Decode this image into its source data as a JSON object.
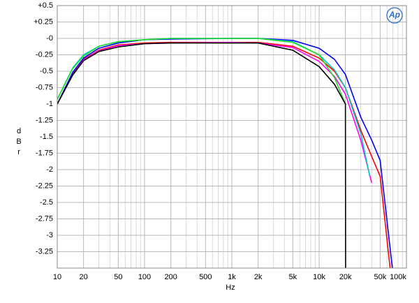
{
  "chart_data": {
    "type": "line",
    "xlabel": "Hz",
    "ylabel": "dBr",
    "logo": "Ap",
    "xscale": "log",
    "grid": true,
    "xlim": [
      10,
      100000
    ],
    "ylim": [
      -3.5,
      0.5
    ],
    "xticks": [
      10,
      20,
      50,
      100,
      200,
      500,
      {
        "value": 1000,
        "label": "1k"
      },
      {
        "value": 2000,
        "label": "2k"
      },
      {
        "value": 5000,
        "label": "5k"
      },
      {
        "value": 10000,
        "label": "10k"
      },
      {
        "value": 20000,
        "label": "20k"
      },
      {
        "value": 50000,
        "label": "50k"
      },
      {
        "value": 100000,
        "label": "100k"
      }
    ],
    "xgrid": [
      30,
      40,
      60,
      70,
      80,
      90,
      300,
      400,
      600,
      700,
      800,
      900,
      3000,
      4000,
      6000,
      7000,
      8000,
      9000,
      30000,
      40000,
      60000,
      70000,
      80000,
      90000
    ],
    "yticks": [
      {
        "value": 0.5,
        "label": "+0.5"
      },
      {
        "value": 0.25,
        "label": "+0.25"
      },
      {
        "value": 0,
        "label": "-0"
      },
      -0.25,
      -0.5,
      -0.75,
      -1,
      -1.25,
      -1.5,
      -1.75,
      -2,
      -2.25,
      -2.5,
      -2.75,
      -3,
      -3.25
    ],
    "series": [
      {
        "color": "#ff0000",
        "x": [
          10,
          15,
          20,
          30,
          50,
          100,
          200,
          1000,
          2000,
          5000,
          10000,
          15000,
          20000,
          30000,
          40000,
          50000,
          65000
        ],
        "values": [
          -1,
          -0.55,
          -0.32,
          -0.18,
          -0.1,
          -0.07,
          -0.06,
          -0.06,
          -0.06,
          -0.12,
          -0.3,
          -0.5,
          -0.75,
          -1.4,
          -1.8,
          -2.1,
          -3.5
        ]
      },
      {
        "color": "#0000ff",
        "x": [
          10,
          15,
          20,
          30,
          50,
          100,
          200,
          1000,
          2000,
          5000,
          10000,
          15000,
          20000,
          30000,
          40000,
          50000,
          69000
        ],
        "values": [
          -1,
          -0.52,
          -0.3,
          -0.15,
          -0.07,
          -0.02,
          -0.01,
          0,
          0,
          -0.03,
          -0.15,
          -0.32,
          -0.55,
          -1.2,
          -1.55,
          -1.86,
          -3.5
        ]
      },
      {
        "color": "#ff00ff",
        "x": [
          10,
          15,
          20,
          30,
          50,
          100,
          200,
          1000,
          2000,
          5000,
          10000,
          15000,
          20000,
          30000,
          40000
        ],
        "values": [
          -1,
          -0.56,
          -0.33,
          -0.19,
          -0.11,
          -0.08,
          -0.07,
          -0.06,
          -0.07,
          -0.14,
          -0.35,
          -0.58,
          -0.85,
          -1.55,
          -2.2
        ]
      },
      {
        "color": "#00cccc",
        "x": [
          10,
          15,
          20,
          30,
          50,
          100,
          200,
          1000,
          2000,
          5000,
          10000,
          15000,
          20000,
          30000,
          38000
        ],
        "values": [
          -0.93,
          -0.45,
          -0.25,
          -0.12,
          -0.05,
          -0.02,
          0,
          0,
          0,
          -0.05,
          -0.25,
          -0.48,
          -0.75,
          -1.45,
          -2.1
        ]
      },
      {
        "color": "#22dd22",
        "x": [
          10,
          15,
          20,
          30,
          50,
          100,
          200,
          1000,
          2000,
          5000,
          10000,
          15000,
          20000
        ],
        "values": [
          -0.93,
          -0.46,
          -0.27,
          -0.12,
          -0.05,
          -0.02,
          0,
          0,
          0,
          -0.06,
          -0.25,
          -0.6,
          -1
        ]
      },
      {
        "color": "#000000",
        "x": [
          10,
          15,
          20,
          30,
          50,
          100,
          200,
          1000,
          2000,
          5000,
          10000,
          15000,
          20000,
          20100
        ],
        "values": [
          -1,
          -0.56,
          -0.34,
          -0.2,
          -0.13,
          -0.08,
          -0.07,
          -0.07,
          -0.07,
          -0.18,
          -0.43,
          -0.7,
          -1,
          -3.5
        ]
      }
    ]
  }
}
